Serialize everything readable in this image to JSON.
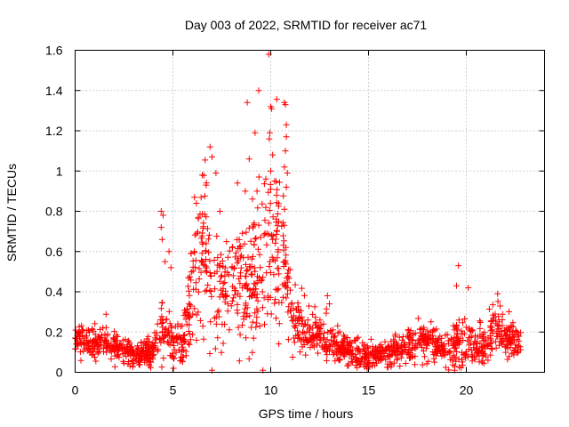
{
  "chart_data": {
    "type": "scatter",
    "title": "Day 003 of 2022, SRMTID for receiver ac71",
    "xlabel": "GPS time / hours",
    "ylabel": "SRMTID / TECUs",
    "xlim": [
      0,
      24
    ],
    "ylim": [
      0,
      1.6
    ],
    "x_ticks": [
      0,
      5,
      10,
      15,
      20
    ],
    "x_tick_labels": [
      "0",
      "5",
      "10",
      "15",
      "20"
    ],
    "y_ticks": [
      0,
      0.2,
      0.4,
      0.6,
      0.8,
      1.0,
      1.2,
      1.4,
      1.6
    ],
    "y_tick_labels": [
      "0",
      "0.2",
      "0.4",
      "0.6",
      "0.8",
      "1",
      "1.2",
      "1.4",
      "1.6"
    ],
    "grid": true,
    "marker": "+",
    "marker_color": "#ff0000",
    "series": [
      {
        "name": "SRMTID",
        "profile": [
          {
            "x": 0.0,
            "y": 0.16,
            "spread": 0.05
          },
          {
            "x": 1.0,
            "y": 0.15,
            "spread": 0.05
          },
          {
            "x": 2.0,
            "y": 0.13,
            "spread": 0.05
          },
          {
            "x": 3.0,
            "y": 0.08,
            "spread": 0.04
          },
          {
            "x": 4.0,
            "y": 0.11,
            "spread": 0.05
          },
          {
            "x": 4.5,
            "y": 0.24,
            "spread": 0.12
          },
          {
            "x": 5.0,
            "y": 0.15,
            "spread": 0.07
          },
          {
            "x": 5.5,
            "y": 0.14,
            "spread": 0.06
          },
          {
            "x": 6.0,
            "y": 0.4,
            "spread": 0.18
          },
          {
            "x": 6.6,
            "y": 0.62,
            "spread": 0.24
          },
          {
            "x": 7.2,
            "y": 0.42,
            "spread": 0.18
          },
          {
            "x": 8.0,
            "y": 0.44,
            "spread": 0.18
          },
          {
            "x": 9.0,
            "y": 0.44,
            "spread": 0.2
          },
          {
            "x": 9.8,
            "y": 0.6,
            "spread": 0.3
          },
          {
            "x": 10.5,
            "y": 0.62,
            "spread": 0.26
          },
          {
            "x": 11.2,
            "y": 0.27,
            "spread": 0.1
          },
          {
            "x": 12.0,
            "y": 0.19,
            "spread": 0.07
          },
          {
            "x": 13.0,
            "y": 0.15,
            "spread": 0.06
          },
          {
            "x": 14.0,
            "y": 0.1,
            "spread": 0.05
          },
          {
            "x": 15.0,
            "y": 0.08,
            "spread": 0.04
          },
          {
            "x": 16.0,
            "y": 0.09,
            "spread": 0.04
          },
          {
            "x": 17.0,
            "y": 0.13,
            "spread": 0.06
          },
          {
            "x": 18.0,
            "y": 0.16,
            "spread": 0.06
          },
          {
            "x": 19.0,
            "y": 0.11,
            "spread": 0.05
          },
          {
            "x": 19.6,
            "y": 0.15,
            "spread": 0.08
          },
          {
            "x": 20.5,
            "y": 0.1,
            "spread": 0.05
          },
          {
            "x": 21.5,
            "y": 0.22,
            "spread": 0.08
          },
          {
            "x": 22.0,
            "y": 0.18,
            "spread": 0.07
          },
          {
            "x": 22.8,
            "y": 0.13,
            "spread": 0.05
          }
        ],
        "outliers": [
          [
            4.4,
            0.8
          ],
          [
            4.5,
            0.78
          ],
          [
            4.4,
            0.72
          ],
          [
            4.45,
            0.66
          ],
          [
            4.6,
            0.55
          ],
          [
            4.8,
            0.6
          ],
          [
            4.9,
            0.52
          ],
          [
            6.1,
            0.87
          ],
          [
            6.2,
            0.84
          ],
          [
            6.3,
            0.77
          ],
          [
            6.7,
            0.93
          ],
          [
            6.9,
            1.12
          ],
          [
            7.0,
            1.07
          ],
          [
            7.2,
            0.99
          ],
          [
            6.5,
            0.98
          ],
          [
            7.4,
            0.8
          ],
          [
            8.3,
            0.94
          ],
          [
            8.7,
            0.9
          ],
          [
            8.8,
            1.34
          ],
          [
            8.9,
            1.06
          ],
          [
            9.2,
            1.19
          ],
          [
            9.4,
            0.97
          ],
          [
            9.3,
            0.9
          ],
          [
            9.9,
            1.58
          ],
          [
            10.0,
            1.32
          ],
          [
            10.05,
            1.31
          ],
          [
            9.95,
            1.19
          ],
          [
            10.1,
            1.08
          ],
          [
            10.0,
            1.0
          ],
          [
            10.2,
            0.95
          ],
          [
            10.0,
            0.91
          ],
          [
            10.3,
            0.88
          ],
          [
            10.7,
            1.34
          ],
          [
            10.75,
            1.33
          ],
          [
            10.8,
            1.23
          ],
          [
            10.8,
            1.17
          ],
          [
            10.75,
            1.1
          ],
          [
            10.7,
            1.02
          ],
          [
            10.85,
            0.99
          ],
          [
            10.8,
            0.92
          ],
          [
            10.7,
            0.81
          ],
          [
            12.9,
            0.38
          ],
          [
            13.0,
            0.34
          ],
          [
            19.6,
            0.53
          ],
          [
            19.5,
            0.43
          ],
          [
            20.1,
            0.42
          ],
          [
            21.6,
            0.39
          ],
          [
            9.6,
            0.01
          ],
          [
            7.0,
            0.01
          ],
          [
            19.4,
            0.01
          ]
        ]
      }
    ]
  }
}
